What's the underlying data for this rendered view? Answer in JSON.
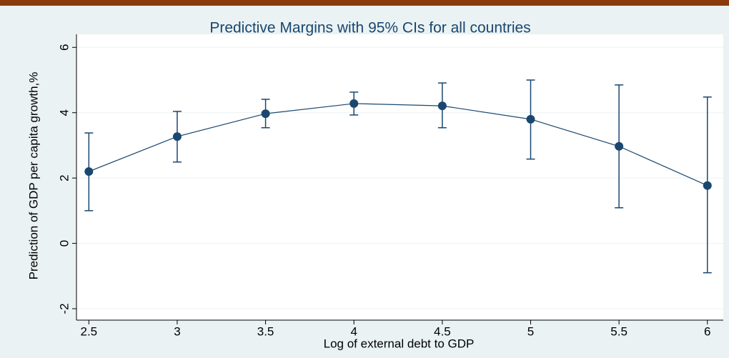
{
  "chart_data": {
    "type": "errorbar",
    "title": "Predictive Margins with 95% CIs for all countries",
    "x_label": "Log of external debt to GDP",
    "y_label": "Prediction of GDP per capita growth,%",
    "x": [
      2.5,
      3,
      3.5,
      4,
      4.5,
      5,
      5.5,
      6
    ],
    "series": [
      {
        "color": "#1a476f",
        "values": [
          2.2,
          3.27,
          3.97,
          4.28,
          4.21,
          3.8,
          2.97,
          1.77
        ],
        "lower": [
          1.0,
          2.49,
          3.54,
          3.93,
          3.54,
          2.58,
          1.09,
          -0.9
        ],
        "upper": [
          3.38,
          4.04,
          4.41,
          4.63,
          4.91,
          5.0,
          4.85,
          4.48
        ]
      }
    ],
    "xlim": [
      2.43,
      6.09
    ],
    "ylim": [
      -2.35,
      6.4
    ],
    "xticks": [
      2.5,
      3,
      3.5,
      4,
      4.5,
      5,
      5.5,
      6
    ],
    "yticks": [
      -2,
      0,
      2,
      4,
      6
    ],
    "grid": true
  }
}
